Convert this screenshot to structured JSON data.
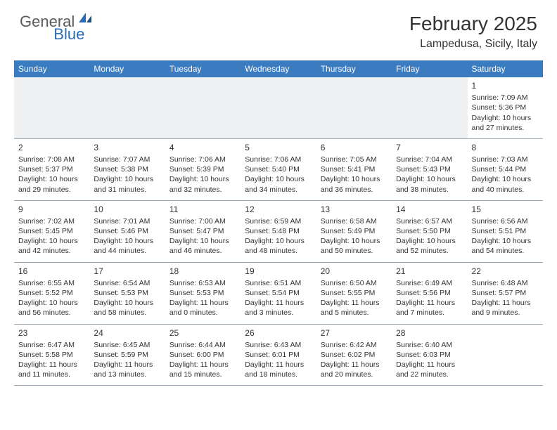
{
  "logo": {
    "general": "General",
    "blue": "Blue"
  },
  "title": "February 2025",
  "location": "Lampedusa, Sicily, Italy",
  "colors": {
    "header_bg": "#3b7bbf",
    "header_text": "#ffffff",
    "body_text": "#333333",
    "rule": "#9aa7b3",
    "empty_bg": "#eef0f2",
    "logo_gray": "#5a5a5a",
    "logo_blue": "#2a6db8"
  },
  "weekdays": [
    "Sunday",
    "Monday",
    "Tuesday",
    "Wednesday",
    "Thursday",
    "Friday",
    "Saturday"
  ],
  "weeks": [
    [
      null,
      null,
      null,
      null,
      null,
      null,
      {
        "n": "1",
        "sr": "7:09 AM",
        "ss": "5:36 PM",
        "dl": "10 hours and 27 minutes."
      }
    ],
    [
      {
        "n": "2",
        "sr": "7:08 AM",
        "ss": "5:37 PM",
        "dl": "10 hours and 29 minutes."
      },
      {
        "n": "3",
        "sr": "7:07 AM",
        "ss": "5:38 PM",
        "dl": "10 hours and 31 minutes."
      },
      {
        "n": "4",
        "sr": "7:06 AM",
        "ss": "5:39 PM",
        "dl": "10 hours and 32 minutes."
      },
      {
        "n": "5",
        "sr": "7:06 AM",
        "ss": "5:40 PM",
        "dl": "10 hours and 34 minutes."
      },
      {
        "n": "6",
        "sr": "7:05 AM",
        "ss": "5:41 PM",
        "dl": "10 hours and 36 minutes."
      },
      {
        "n": "7",
        "sr": "7:04 AM",
        "ss": "5:43 PM",
        "dl": "10 hours and 38 minutes."
      },
      {
        "n": "8",
        "sr": "7:03 AM",
        "ss": "5:44 PM",
        "dl": "10 hours and 40 minutes."
      }
    ],
    [
      {
        "n": "9",
        "sr": "7:02 AM",
        "ss": "5:45 PM",
        "dl": "10 hours and 42 minutes."
      },
      {
        "n": "10",
        "sr": "7:01 AM",
        "ss": "5:46 PM",
        "dl": "10 hours and 44 minutes."
      },
      {
        "n": "11",
        "sr": "7:00 AM",
        "ss": "5:47 PM",
        "dl": "10 hours and 46 minutes."
      },
      {
        "n": "12",
        "sr": "6:59 AM",
        "ss": "5:48 PM",
        "dl": "10 hours and 48 minutes."
      },
      {
        "n": "13",
        "sr": "6:58 AM",
        "ss": "5:49 PM",
        "dl": "10 hours and 50 minutes."
      },
      {
        "n": "14",
        "sr": "6:57 AM",
        "ss": "5:50 PM",
        "dl": "10 hours and 52 minutes."
      },
      {
        "n": "15",
        "sr": "6:56 AM",
        "ss": "5:51 PM",
        "dl": "10 hours and 54 minutes."
      }
    ],
    [
      {
        "n": "16",
        "sr": "6:55 AM",
        "ss": "5:52 PM",
        "dl": "10 hours and 56 minutes."
      },
      {
        "n": "17",
        "sr": "6:54 AM",
        "ss": "5:53 PM",
        "dl": "10 hours and 58 minutes."
      },
      {
        "n": "18",
        "sr": "6:53 AM",
        "ss": "5:53 PM",
        "dl": "11 hours and 0 minutes."
      },
      {
        "n": "19",
        "sr": "6:51 AM",
        "ss": "5:54 PM",
        "dl": "11 hours and 3 minutes."
      },
      {
        "n": "20",
        "sr": "6:50 AM",
        "ss": "5:55 PM",
        "dl": "11 hours and 5 minutes."
      },
      {
        "n": "21",
        "sr": "6:49 AM",
        "ss": "5:56 PM",
        "dl": "11 hours and 7 minutes."
      },
      {
        "n": "22",
        "sr": "6:48 AM",
        "ss": "5:57 PM",
        "dl": "11 hours and 9 minutes."
      }
    ],
    [
      {
        "n": "23",
        "sr": "6:47 AM",
        "ss": "5:58 PM",
        "dl": "11 hours and 11 minutes."
      },
      {
        "n": "24",
        "sr": "6:45 AM",
        "ss": "5:59 PM",
        "dl": "11 hours and 13 minutes."
      },
      {
        "n": "25",
        "sr": "6:44 AM",
        "ss": "6:00 PM",
        "dl": "11 hours and 15 minutes."
      },
      {
        "n": "26",
        "sr": "6:43 AM",
        "ss": "6:01 PM",
        "dl": "11 hours and 18 minutes."
      },
      {
        "n": "27",
        "sr": "6:42 AM",
        "ss": "6:02 PM",
        "dl": "11 hours and 20 minutes."
      },
      {
        "n": "28",
        "sr": "6:40 AM",
        "ss": "6:03 PM",
        "dl": "11 hours and 22 minutes."
      },
      null
    ]
  ],
  "labels": {
    "sunrise": "Sunrise: ",
    "sunset": "Sunset: ",
    "daylight": "Daylight: "
  }
}
